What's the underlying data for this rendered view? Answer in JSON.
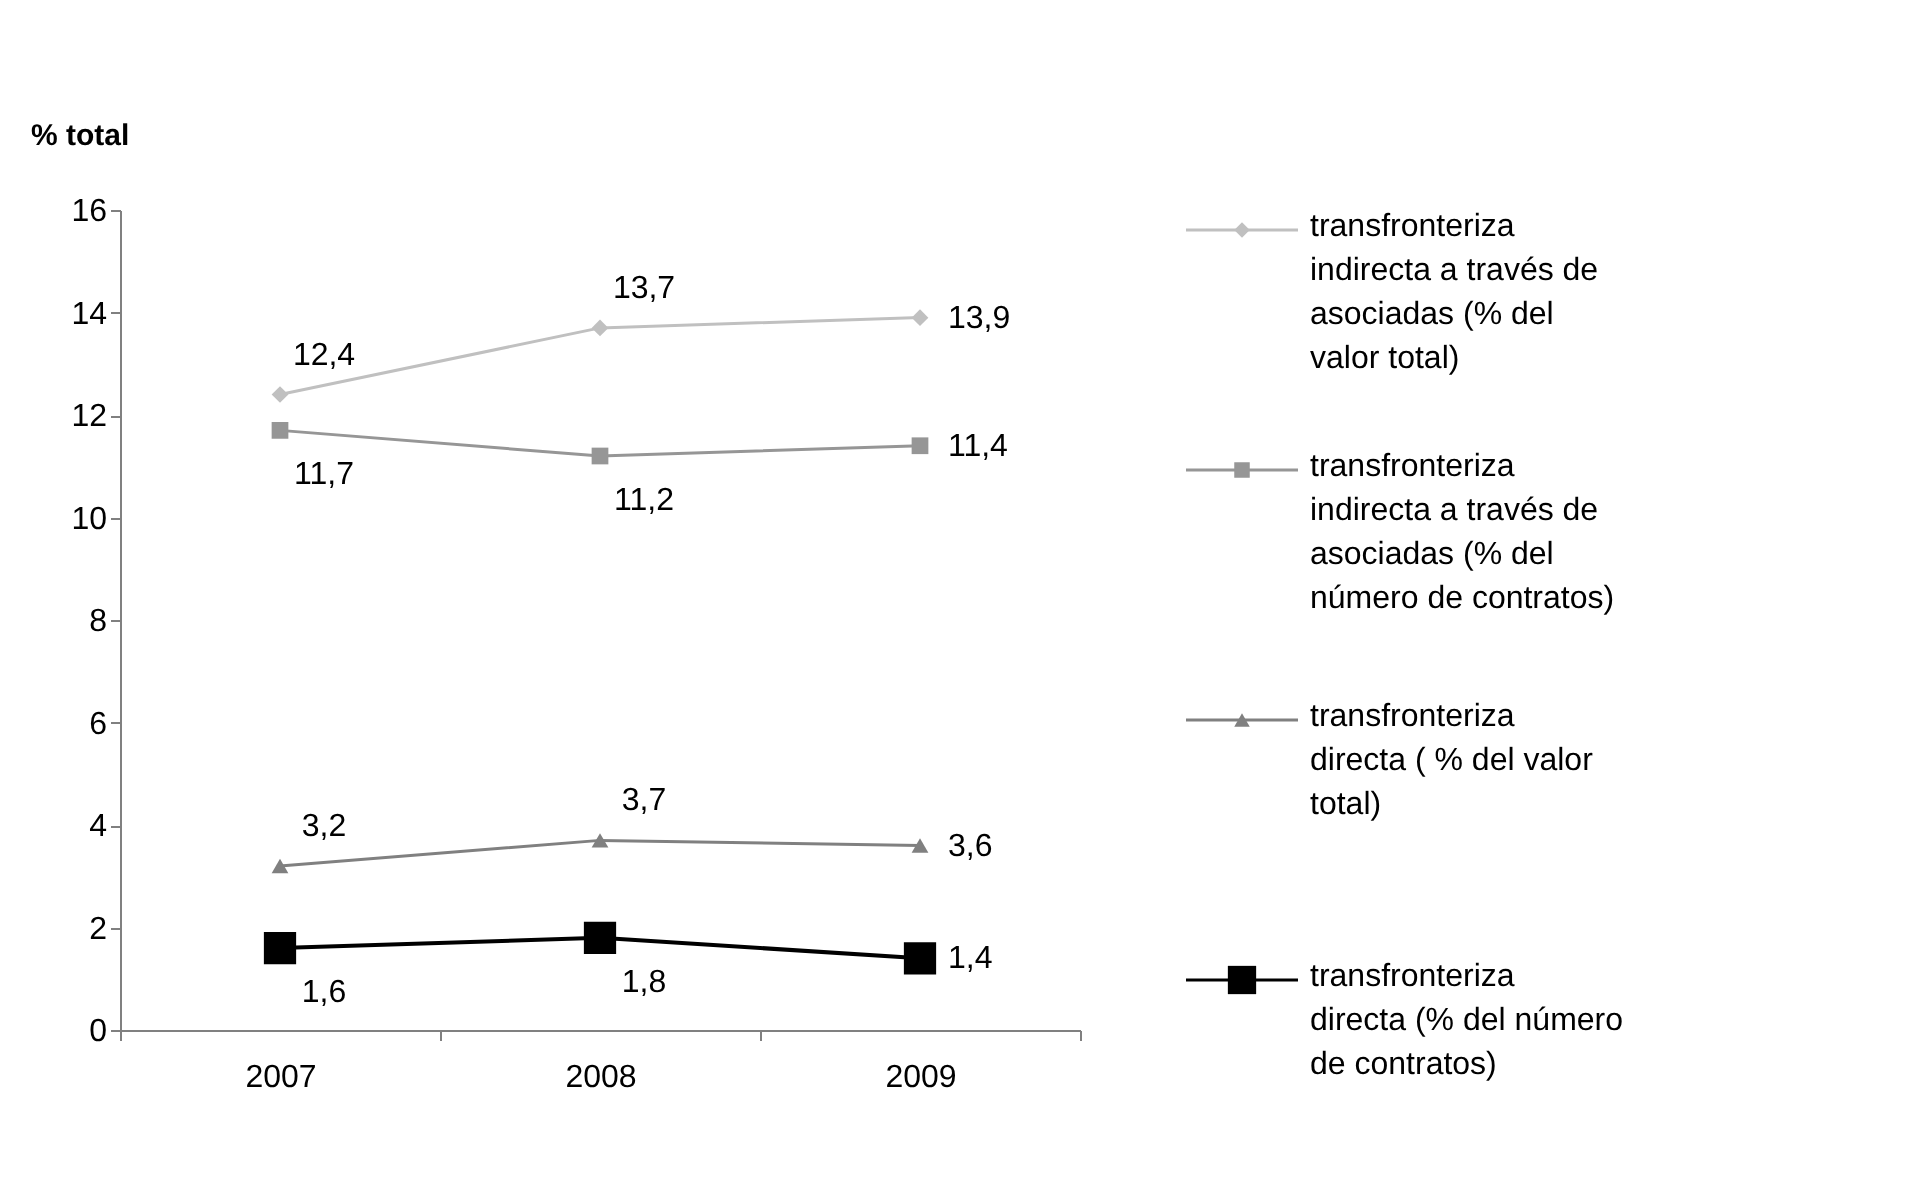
{
  "chart_data": {
    "type": "line",
    "ylabel": "% total",
    "categories": [
      "2007",
      "2008",
      "2009"
    ],
    "ylim": [
      0,
      16
    ],
    "yticks": [
      0,
      2,
      4,
      6,
      8,
      10,
      12,
      14,
      16
    ],
    "grid": false,
    "legend": "right",
    "series": [
      {
        "name": "transfronteriza indirecta a través de asociadas (% del valor total)",
        "color": "#c0c0c0",
        "marker": "diamond",
        "values": [
          12.4,
          13.7,
          13.9
        ],
        "value_labels": [
          "12,4",
          "13,7",
          "13,9"
        ]
      },
      {
        "name": "transfronteriza indirecta a través de asociadas (% del número de contratos)",
        "color": "#969696",
        "marker": "square",
        "values": [
          11.7,
          11.2,
          11.4
        ],
        "value_labels": [
          "11,7",
          "11,2",
          "11,4"
        ]
      },
      {
        "name": "transfronteriza directa ( % del valor total)",
        "color": "#808080",
        "marker": "triangle",
        "values": [
          3.2,
          3.7,
          3.6
        ],
        "value_labels": [
          "3,2",
          "3,7",
          "3,6"
        ]
      },
      {
        "name": "transfronteriza directa (% del número de contratos)",
        "color": "#000000",
        "marker": "square",
        "values": [
          1.6,
          1.8,
          1.4
        ],
        "value_labels": [
          "1,6",
          "1,8",
          "1,4"
        ]
      }
    ]
  }
}
